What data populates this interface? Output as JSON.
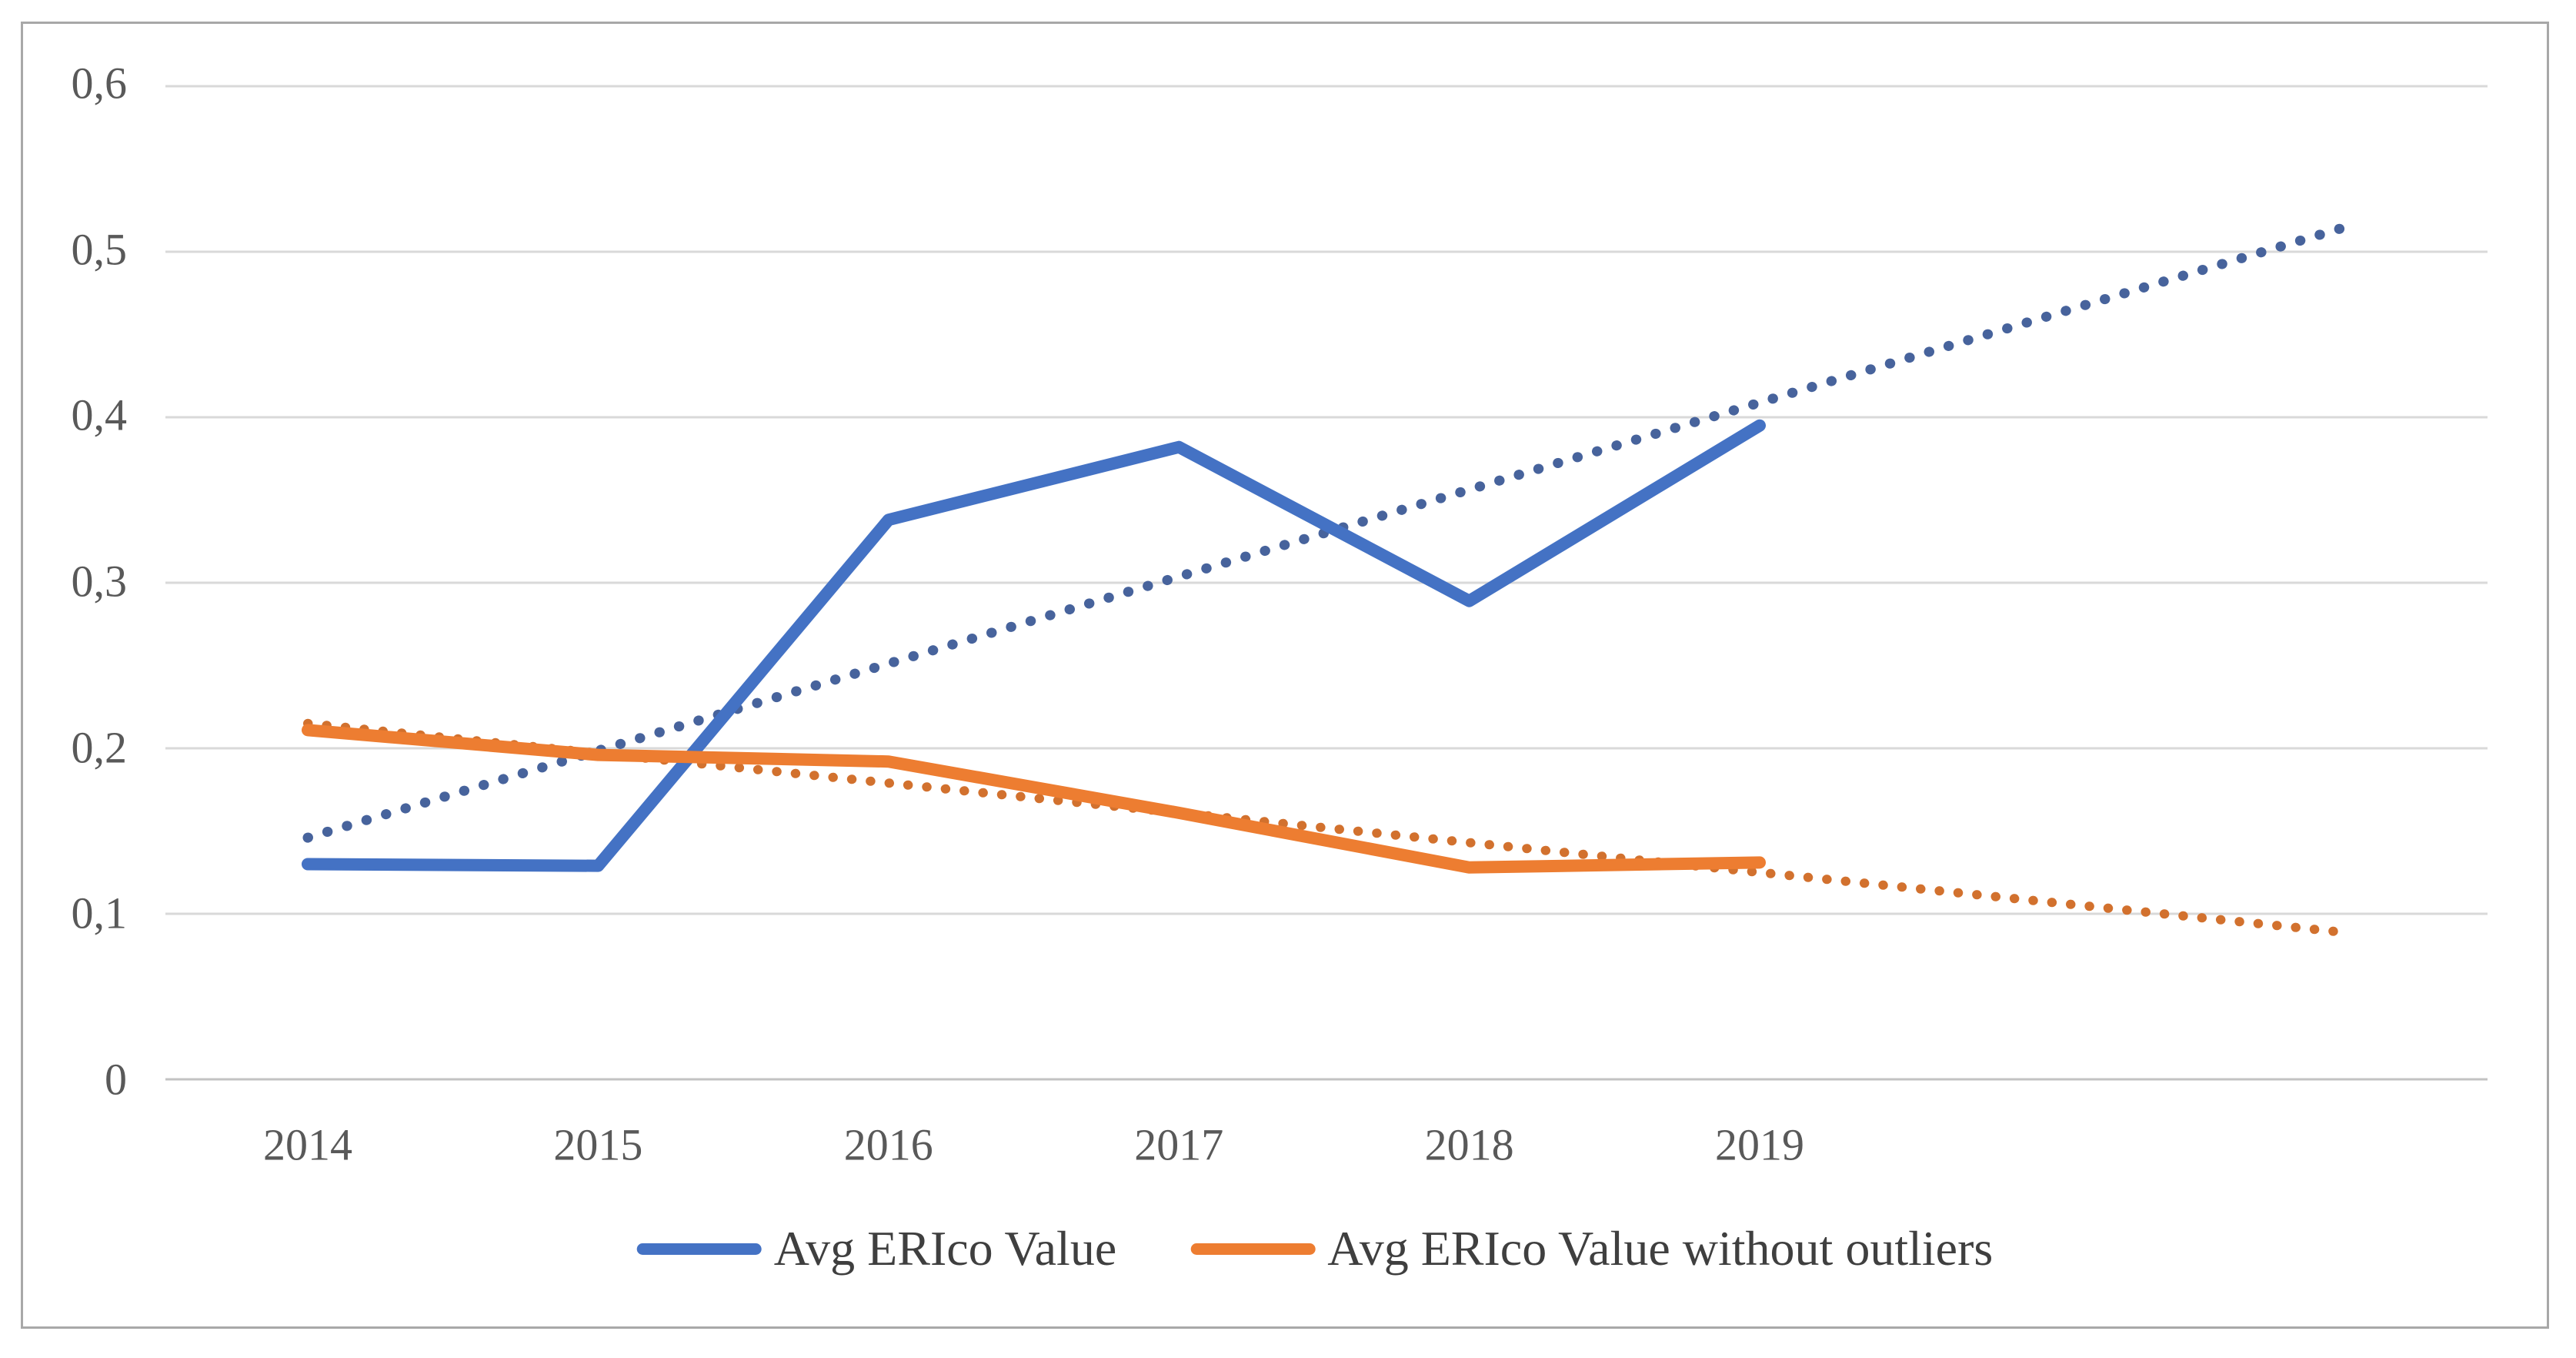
{
  "chart_data": {
    "type": "line",
    "title": "",
    "categories": [
      "2014",
      "2015",
      "2016",
      "2017",
      "2018",
      "2019"
    ],
    "series": [
      {
        "name": "Avg ERIco Value",
        "color": "#4472C4",
        "values": [
          0.13,
          0.129,
          0.338,
          0.382,
          0.289,
          0.395
        ],
        "trendline": {
          "type": "linear",
          "style": "dotted",
          "color": "#47639C",
          "start_value": 0.146,
          "end_value": 0.514,
          "forecast_periods": 2
        }
      },
      {
        "name": "Avg ERIco Value without outliers",
        "color": "#ED7D31",
        "values": [
          0.211,
          0.196,
          0.192,
          0.161,
          0.128,
          0.131
        ],
        "trendline": {
          "type": "linear",
          "style": "dotted",
          "color": "#D2712E",
          "start_value": 0.215,
          "end_value": 0.089,
          "forecast_periods": 2
        }
      }
    ],
    "y_axis": {
      "min": 0,
      "max": 0.6,
      "tick_interval": 0.1,
      "tick_values": [
        0.6,
        0.5,
        0.4,
        0.3,
        0.2,
        0.1,
        0
      ],
      "tick_labels": [
        "0,6",
        "0,5",
        "0,4",
        "0,3",
        "0,2",
        "0,1",
        "0"
      ]
    },
    "x_axis": {
      "tick_labels": [
        "2014",
        "2015",
        "2016",
        "2017",
        "2018",
        "2019"
      ]
    },
    "grid": true,
    "gridline_color": "#D9D9D9",
    "axis_line_color": "#C3C3C3",
    "legend_position": "bottom"
  },
  "colors": {
    "frame_border": "#A8A8A8",
    "tick_text": "#595959",
    "legend_text": "#3F3F3F",
    "background": "#FFFFFF"
  }
}
